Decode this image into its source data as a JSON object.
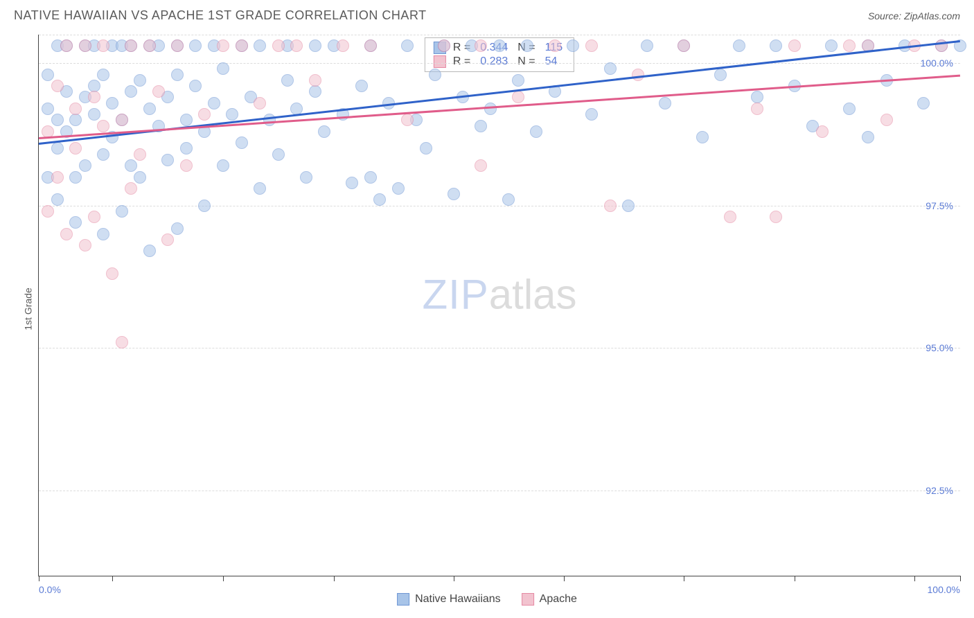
{
  "title": "NATIVE HAWAIIAN VS APACHE 1ST GRADE CORRELATION CHART",
  "source": "Source: ZipAtlas.com",
  "ylabel": "1st Grade",
  "watermark_a": "ZIP",
  "watermark_b": "atlas",
  "chart": {
    "type": "scatter-with-trend",
    "xlim": [
      0,
      100
    ],
    "ylim": [
      91,
      100.5
    ],
    "xtick_label_left": "0.0%",
    "xtick_label_right": "100.0%",
    "xticks": [
      0,
      8,
      20,
      32,
      45,
      57,
      70,
      82,
      95,
      100
    ],
    "yticks": [
      {
        "v": 100.0,
        "label": "100.0%"
      },
      {
        "v": 97.5,
        "label": "97.5%"
      },
      {
        "v": 95.0,
        "label": "95.0%"
      },
      {
        "v": 92.5,
        "label": "92.5%"
      }
    ],
    "grid_color": "#dcdcdc",
    "background_color": "#ffffff",
    "series": [
      {
        "name": "Native Hawaiians",
        "fill": "#a8c4e8",
        "stroke": "#6f97d4",
        "trend_color": "#2f62c9",
        "legend_R": "0.344",
        "legend_N": "115",
        "trend": {
          "x1": 0,
          "y1": 98.6,
          "x2": 100,
          "y2": 100.4
        },
        "points": [
          [
            1,
            98.0
          ],
          [
            1,
            99.2
          ],
          [
            1,
            99.8
          ],
          [
            2,
            99.0
          ],
          [
            2,
            100.3
          ],
          [
            2,
            97.6
          ],
          [
            2,
            98.5
          ],
          [
            3,
            98.8
          ],
          [
            3,
            99.5
          ],
          [
            3,
            100.3
          ],
          [
            4,
            99.0
          ],
          [
            4,
            97.2
          ],
          [
            4,
            98.0
          ],
          [
            5,
            99.4
          ],
          [
            5,
            100.3
          ],
          [
            5,
            98.2
          ],
          [
            6,
            99.1
          ],
          [
            6,
            99.6
          ],
          [
            6,
            100.3
          ],
          [
            7,
            98.4
          ],
          [
            7,
            99.8
          ],
          [
            7,
            97.0
          ],
          [
            8,
            99.3
          ],
          [
            8,
            100.3
          ],
          [
            8,
            98.7
          ],
          [
            9,
            99.0
          ],
          [
            9,
            97.4
          ],
          [
            9,
            100.3
          ],
          [
            10,
            98.2
          ],
          [
            10,
            99.5
          ],
          [
            10,
            100.3
          ],
          [
            11,
            99.7
          ],
          [
            11,
            98.0
          ],
          [
            12,
            100.3
          ],
          [
            12,
            99.2
          ],
          [
            12,
            96.7
          ],
          [
            13,
            98.9
          ],
          [
            13,
            100.3
          ],
          [
            14,
            99.4
          ],
          [
            14,
            98.3
          ],
          [
            15,
            99.8
          ],
          [
            15,
            97.1
          ],
          [
            15,
            100.3
          ],
          [
            16,
            99.0
          ],
          [
            16,
            98.5
          ],
          [
            17,
            100.3
          ],
          [
            17,
            99.6
          ],
          [
            18,
            98.8
          ],
          [
            18,
            97.5
          ],
          [
            19,
            99.3
          ],
          [
            19,
            100.3
          ],
          [
            20,
            99.9
          ],
          [
            20,
            98.2
          ],
          [
            21,
            99.1
          ],
          [
            22,
            100.3
          ],
          [
            22,
            98.6
          ],
          [
            23,
            99.4
          ],
          [
            24,
            97.8
          ],
          [
            24,
            100.3
          ],
          [
            25,
            99.0
          ],
          [
            26,
            98.4
          ],
          [
            27,
            99.7
          ],
          [
            27,
            100.3
          ],
          [
            28,
            99.2
          ],
          [
            29,
            98.0
          ],
          [
            30,
            100.3
          ],
          [
            30,
            99.5
          ],
          [
            31,
            98.8
          ],
          [
            32,
            100.3
          ],
          [
            33,
            99.1
          ],
          [
            34,
            97.9
          ],
          [
            35,
            99.6
          ],
          [
            36,
            100.3
          ],
          [
            36,
            98.0
          ],
          [
            37,
            97.6
          ],
          [
            38,
            99.3
          ],
          [
            39,
            97.8
          ],
          [
            40,
            100.3
          ],
          [
            41,
            99.0
          ],
          [
            42,
            98.5
          ],
          [
            43,
            99.8
          ],
          [
            44,
            100.3
          ],
          [
            45,
            97.7
          ],
          [
            46,
            99.4
          ],
          [
            47,
            100.3
          ],
          [
            48,
            98.9
          ],
          [
            49,
            99.2
          ],
          [
            50,
            100.3
          ],
          [
            51,
            97.6
          ],
          [
            52,
            99.7
          ],
          [
            53,
            100.3
          ],
          [
            54,
            98.8
          ],
          [
            56,
            99.5
          ],
          [
            58,
            100.3
          ],
          [
            60,
            99.1
          ],
          [
            62,
            99.9
          ],
          [
            64,
            97.5
          ],
          [
            66,
            100.3
          ],
          [
            68,
            99.3
          ],
          [
            70,
            100.3
          ],
          [
            72,
            98.7
          ],
          [
            74,
            99.8
          ],
          [
            76,
            100.3
          ],
          [
            78,
            99.4
          ],
          [
            80,
            100.3
          ],
          [
            82,
            99.6
          ],
          [
            84,
            98.9
          ],
          [
            86,
            100.3
          ],
          [
            88,
            99.2
          ],
          [
            90,
            100.3
          ],
          [
            90,
            98.7
          ],
          [
            92,
            99.7
          ],
          [
            94,
            100.3
          ],
          [
            96,
            99.3
          ],
          [
            98,
            100.3
          ],
          [
            100,
            100.3
          ]
        ]
      },
      {
        "name": "Apache",
        "fill": "#f2c3cf",
        "stroke": "#e589a3",
        "trend_color": "#e05c8a",
        "legend_R": "0.283",
        "legend_N": "54",
        "trend": {
          "x1": 0,
          "y1": 98.7,
          "x2": 100,
          "y2": 99.8
        },
        "points": [
          [
            1,
            97.4
          ],
          [
            1,
            98.8
          ],
          [
            2,
            99.6
          ],
          [
            2,
            98.0
          ],
          [
            3,
            100.3
          ],
          [
            3,
            97.0
          ],
          [
            4,
            99.2
          ],
          [
            4,
            98.5
          ],
          [
            5,
            96.8
          ],
          [
            5,
            100.3
          ],
          [
            6,
            99.4
          ],
          [
            6,
            97.3
          ],
          [
            7,
            98.9
          ],
          [
            7,
            100.3
          ],
          [
            8,
            96.3
          ],
          [
            9,
            99.0
          ],
          [
            9,
            95.1
          ],
          [
            10,
            100.3
          ],
          [
            10,
            97.8
          ],
          [
            11,
            98.4
          ],
          [
            12,
            100.3
          ],
          [
            13,
            99.5
          ],
          [
            14,
            96.9
          ],
          [
            15,
            100.3
          ],
          [
            16,
            98.2
          ],
          [
            18,
            99.1
          ],
          [
            20,
            100.3
          ],
          [
            22,
            100.3
          ],
          [
            24,
            99.3
          ],
          [
            26,
            100.3
          ],
          [
            28,
            100.3
          ],
          [
            30,
            99.7
          ],
          [
            33,
            100.3
          ],
          [
            36,
            100.3
          ],
          [
            40,
            99.0
          ],
          [
            44,
            100.3
          ],
          [
            48,
            100.3
          ],
          [
            48,
            98.2
          ],
          [
            52,
            99.4
          ],
          [
            56,
            100.3
          ],
          [
            60,
            100.3
          ],
          [
            62,
            97.5
          ],
          [
            65,
            99.8
          ],
          [
            70,
            100.3
          ],
          [
            75,
            97.3
          ],
          [
            78,
            99.2
          ],
          [
            80,
            97.3
          ],
          [
            82,
            100.3
          ],
          [
            85,
            98.8
          ],
          [
            88,
            100.3
          ],
          [
            90,
            100.3
          ],
          [
            92,
            99.0
          ],
          [
            95,
            100.3
          ],
          [
            98,
            100.3
          ]
        ]
      }
    ]
  },
  "bottom_legend": [
    {
      "label": "Native Hawaiians",
      "fill": "#a8c4e8",
      "stroke": "#6f97d4"
    },
    {
      "label": "Apache",
      "fill": "#f2c3cf",
      "stroke": "#e589a3"
    }
  ]
}
